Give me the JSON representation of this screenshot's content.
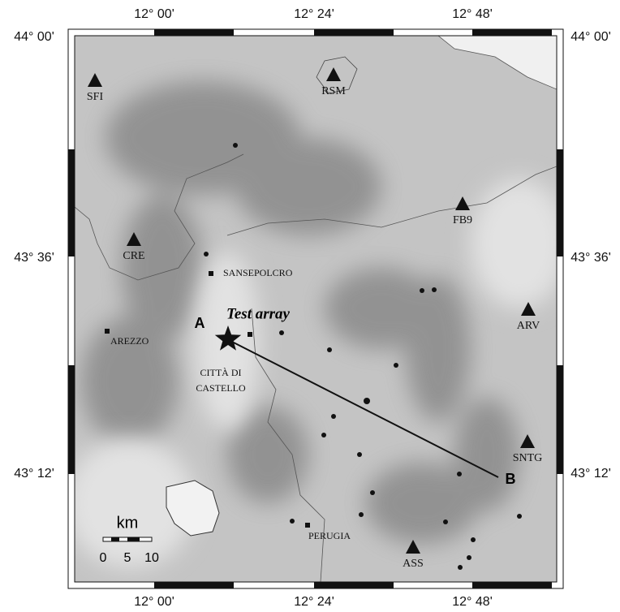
{
  "map": {
    "lon_labels": [
      "12° 00'",
      "12° 24'",
      "12° 48'"
    ],
    "lat_labels": [
      "44° 00'",
      "43° 36'",
      "43° 12'"
    ],
    "stations": [
      "SFI",
      "RSM",
      "FB9",
      "CRE",
      "ARV",
      "SNTG",
      "ASS"
    ],
    "towns": [
      "SANSEPOLCRO",
      "AREZZO",
      "CITTÀ DI",
      "CASTELLO",
      "PERUGIA"
    ],
    "test_array": "Test array",
    "profile": {
      "start": "A",
      "end": "B"
    },
    "scale_bar": {
      "unit": "km",
      "ticks": [
        "0",
        "5",
        "10"
      ]
    }
  }
}
